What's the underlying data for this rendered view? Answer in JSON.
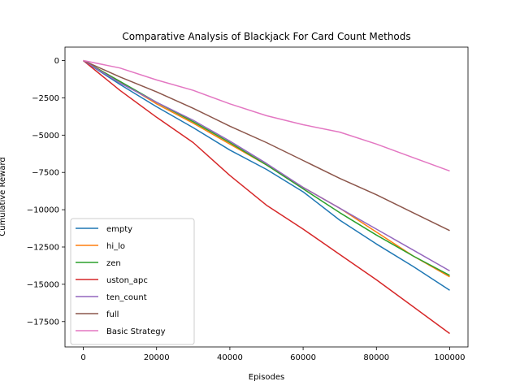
{
  "chart_data": {
    "type": "line",
    "title": "Comparative Analysis of Blackjack For Card Count Methods",
    "xlabel": "Episodes",
    "ylabel": "Cumulative Reward",
    "xlim": [
      -5000,
      105000
    ],
    "ylim": [
      -19200,
      900
    ],
    "xticks": [
      0,
      20000,
      40000,
      60000,
      80000,
      100000
    ],
    "yticks": [
      0,
      -2500,
      -5000,
      -7500,
      -10000,
      -12500,
      -15000,
      -17500
    ],
    "grid": false,
    "legend": "lower-left",
    "series": [
      {
        "name": "empty",
        "color": "#1f77b4",
        "x": [
          0,
          10000,
          20000,
          30000,
          40000,
          50000,
          60000,
          70000,
          80000,
          90000,
          100000
        ],
        "y": [
          0,
          -1600,
          -3100,
          -4500,
          -6000,
          -7300,
          -8800,
          -10700,
          -12300,
          -13800,
          -15400
        ]
      },
      {
        "name": "hi_lo",
        "color": "#ff7f0e",
        "x": [
          0,
          10000,
          20000,
          30000,
          40000,
          50000,
          60000,
          70000,
          80000,
          90000,
          100000
        ],
        "y": [
          0,
          -1400,
          -2900,
          -4200,
          -5600,
          -7000,
          -8500,
          -9900,
          -11500,
          -13100,
          -14500
        ]
      },
      {
        "name": "zen",
        "color": "#2ca02c",
        "x": [
          0,
          10000,
          20000,
          30000,
          40000,
          50000,
          60000,
          70000,
          80000,
          90000,
          100000
        ],
        "y": [
          0,
          -1400,
          -2800,
          -4100,
          -5500,
          -7000,
          -8600,
          -10200,
          -11700,
          -13100,
          -14400
        ]
      },
      {
        "name": "uston_apc",
        "color": "#d62728",
        "x": [
          0,
          10000,
          20000,
          30000,
          40000,
          50000,
          60000,
          70000,
          80000,
          90000,
          100000
        ],
        "y": [
          0,
          -2000,
          -3800,
          -5500,
          -7700,
          -9700,
          -11300,
          -13000,
          -14700,
          -16500,
          -18300
        ]
      },
      {
        "name": "ten_count",
        "color": "#9467bd",
        "x": [
          0,
          10000,
          20000,
          30000,
          40000,
          50000,
          60000,
          70000,
          80000,
          90000,
          100000
        ],
        "y": [
          0,
          -1500,
          -2800,
          -4000,
          -5400,
          -6900,
          -8500,
          -9900,
          -11300,
          -12700,
          -14100
        ]
      },
      {
        "name": "full",
        "color": "#8c564b",
        "x": [
          0,
          10000,
          20000,
          30000,
          40000,
          50000,
          60000,
          70000,
          80000,
          90000,
          100000
        ],
        "y": [
          0,
          -1100,
          -2100,
          -3200,
          -4400,
          -5500,
          -6700,
          -7900,
          -9000,
          -10200,
          -11400
        ]
      },
      {
        "name": "Basic Strategy",
        "color": "#e377c2",
        "x": [
          0,
          10000,
          20000,
          30000,
          40000,
          50000,
          60000,
          70000,
          80000,
          90000,
          100000
        ],
        "y": [
          0,
          -500,
          -1300,
          -2000,
          -2900,
          -3700,
          -4300,
          -4800,
          -5600,
          -6500,
          -7400
        ]
      }
    ]
  }
}
